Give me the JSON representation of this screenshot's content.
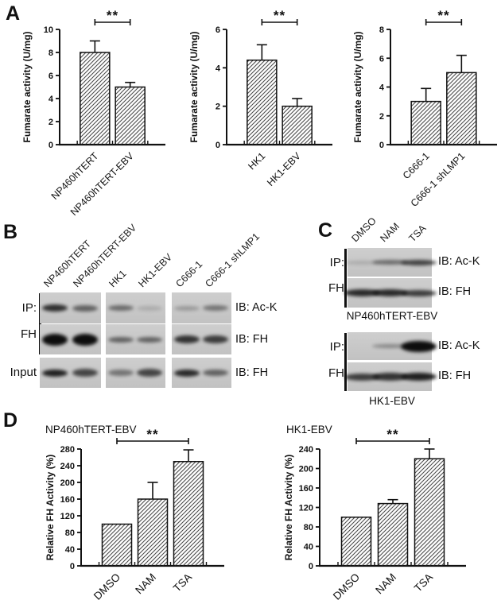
{
  "colors": {
    "background": "#ffffff",
    "text": "#111111",
    "axis": "#111111",
    "bar_fill": "#ffffff",
    "hatch": "#4a4a4a",
    "blot_background": "#c8c8c8",
    "band": "#0d0d0d"
  },
  "panels": {
    "a": {
      "letter": "A"
    },
    "b": {
      "letter": "B",
      "left_labels": {
        "ip": "IP:",
        "fh": "FH",
        "input": "Input"
      },
      "lane_labels": [
        "NP460hTERT",
        "NP460hTERT-EBV",
        "HK1",
        "HK1-EBV",
        "C666-1",
        "C666-1 shLMP1"
      ],
      "rows": [
        {
          "ib_label": "IB: Ac-K",
          "strips": [
            {
              "bands": [
                [
                  0.82,
                  9
                ],
                [
                  0.55,
                  8
                ]
              ]
            },
            {
              "bands": [
                [
                  0.5,
                  7
                ],
                [
                  0.15,
                  6
                ]
              ]
            },
            {
              "bands": [
                [
                  0.25,
                  6
                ],
                [
                  0.45,
                  7
                ]
              ]
            }
          ]
        },
        {
          "ib_label": "IB: FH",
          "strips": [
            {
              "bands": [
                [
                  1,
                  15
                ],
                [
                  1,
                  15
                ]
              ]
            },
            {
              "bands": [
                [
                  0.55,
                  7
                ],
                [
                  0.55,
                  7
                ]
              ]
            },
            {
              "bands": [
                [
                  0.8,
                  10
                ],
                [
                  0.75,
                  10
                ]
              ]
            }
          ]
        },
        {
          "ib_label": "IB: FH",
          "strips": [
            {
              "bands": [
                [
                  0.9,
                  9
                ],
                [
                  0.7,
                  10
                ]
              ]
            },
            {
              "bands": [
                [
                  0.45,
                  8
                ],
                [
                  0.7,
                  10
                ]
              ]
            },
            {
              "bands": [
                [
                  0.85,
                  9
                ],
                [
                  0.55,
                  8
                ]
              ]
            }
          ]
        }
      ]
    },
    "c": {
      "letter": "C",
      "left_labels": {
        "ip": "IP:",
        "fh": "FH"
      },
      "lane_labels": [
        "DMSO",
        "NAM",
        "TSA"
      ],
      "groups": [
        {
          "caption": "NP460hTERT-EBV",
          "rows": [
            {
              "ib_label": "IB: Ac-K",
              "bands": [
                [
                  0.15,
                  5
                ],
                [
                  0.5,
                  6
                ],
                [
                  0.72,
                  7
                ]
              ]
            },
            {
              "ib_label": "IB: FH",
              "bands": [
                [
                  0.85,
                  9
                ],
                [
                  0.85,
                  9
                ],
                [
                  0.75,
                  8
                ]
              ]
            }
          ]
        },
        {
          "caption": "HK1-EBV",
          "rows": [
            {
              "ib_label": "IB: Ac-K",
              "bands": [
                [
                  0,
                  0
                ],
                [
                  0.35,
                  5
                ],
                [
                  1,
                  14
                ]
              ]
            },
            {
              "ib_label": "IB: FH",
              "bands": [
                [
                  0.75,
                  9
                ],
                [
                  0.8,
                  10
                ],
                [
                  0.9,
                  10
                ]
              ]
            }
          ]
        }
      ]
    },
    "d": {
      "letter": "D"
    }
  },
  "chart_data": [
    {
      "type": "bar",
      "panel": "A1",
      "title": "",
      "ylabel": "Fumarate activity (U/mg)",
      "categories": [
        "NP460hTERT",
        "NP460hTERT-EBV"
      ],
      "values": [
        8.0,
        5.0
      ],
      "errors": [
        1.0,
        0.4
      ],
      "ylim": [
        0,
        10
      ],
      "ytick_step": 2,
      "significance": {
        "label": "**",
        "from": 0,
        "to": 1
      }
    },
    {
      "type": "bar",
      "panel": "A2",
      "title": "",
      "ylabel": "Fumarate activity (U/mg)",
      "categories": [
        "HK1",
        "HK1-EBV"
      ],
      "values": [
        4.4,
        2.0
      ],
      "errors": [
        0.8,
        0.4
      ],
      "ylim": [
        0,
        6
      ],
      "ytick_step": 2,
      "significance": {
        "label": "**",
        "from": 0,
        "to": 1
      }
    },
    {
      "type": "bar",
      "panel": "A3",
      "title": "",
      "ylabel": "Fumarate activity (U/mg)",
      "categories": [
        "C666-1",
        "C666-1 shLMP1"
      ],
      "values": [
        3.0,
        5.0
      ],
      "errors": [
        0.9,
        1.2
      ],
      "ylim": [
        0,
        8
      ],
      "ytick_step": 2,
      "significance": {
        "label": "**",
        "from": 0,
        "to": 1
      }
    },
    {
      "type": "bar",
      "panel": "D1",
      "title": "NP460hTERT-EBV",
      "ylabel": "Relative FH Activity (%)",
      "categories": [
        "DMSO",
        "NAM",
        "TSA"
      ],
      "values": [
        100,
        160,
        250
      ],
      "errors": [
        0,
        40,
        28
      ],
      "ylim": [
        0,
        280
      ],
      "ytick_step": 40,
      "significance": {
        "label": "**",
        "from": 0,
        "to": 2
      }
    },
    {
      "type": "bar",
      "panel": "D2",
      "title": "HK1-EBV",
      "ylabel": "Relative FH Activity (%)",
      "categories": [
        "DMSO",
        "NAM",
        "TSA"
      ],
      "values": [
        100,
        128,
        220
      ],
      "errors": [
        0,
        8,
        20
      ],
      "ylim": [
        0,
        240
      ],
      "ytick_step": 40,
      "significance": {
        "label": "**",
        "from": 0,
        "to": 2
      }
    }
  ]
}
